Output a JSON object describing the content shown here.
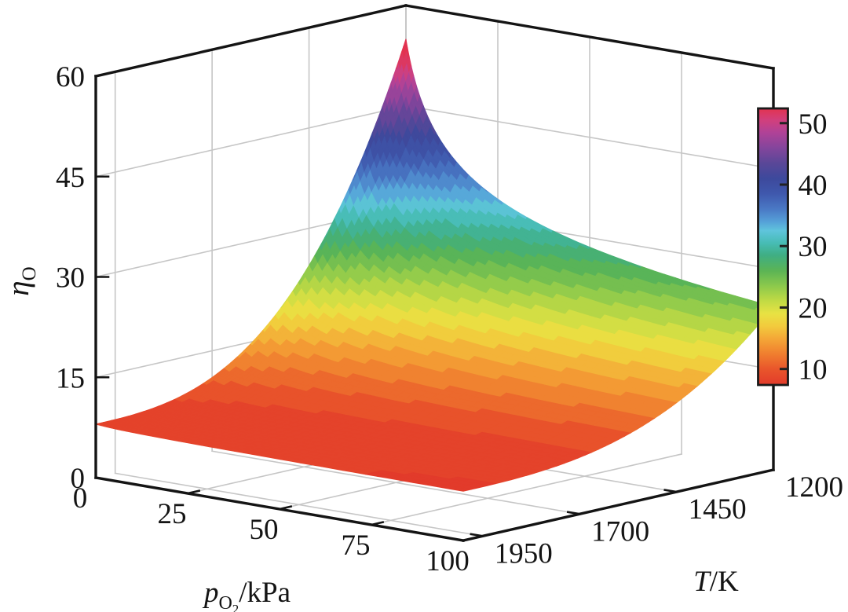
{
  "figure": {
    "background": "#ffffff",
    "axis_color": "#141414",
    "grid_color": "#c6c6c6",
    "back_edge_color": "#b9b9b9",
    "axes": {
      "z": {
        "ticks": [
          0,
          15,
          30,
          45,
          60
        ],
        "range": [
          0,
          60
        ],
        "title_eta": "η",
        "title_sub": "O"
      },
      "x": {
        "ticks": [
          0,
          25,
          50,
          75,
          100
        ],
        "range": [
          0,
          100
        ],
        "title_p": "p",
        "title_sub": "O",
        "title_sub2": "2",
        "title_rest": "/kPa"
      },
      "t": {
        "ticks": [
          1950,
          1700,
          1450,
          1200
        ],
        "range": [
          2000,
          1200
        ],
        "title_T": "T",
        "title_rest": "/K"
      }
    },
    "colorbar": {
      "ticks": [
        10,
        20,
        30,
        40,
        50
      ],
      "range": [
        7.4,
        52.4
      ],
      "position": "right"
    }
  },
  "chart_data": {
    "type": "surface",
    "title": "",
    "xlabel": "p_O2 / kPa",
    "ylabel": "T / K",
    "zlabel": "eta_O",
    "x_range": [
      0,
      100
    ],
    "y_range": [
      2000,
      1200
    ],
    "z_range": [
      0,
      60
    ],
    "color_range": [
      7.4,
      52.4
    ],
    "x_p_kPa": [
      0,
      25,
      50,
      75,
      100
    ],
    "y_T_K": [
      2000,
      1950,
      1700,
      1450,
      1200
    ],
    "z_eta": [
      [
        8.0,
        7.6,
        7.5,
        7.4,
        7.4
      ],
      [
        8.0,
        7.6,
        7.5,
        7.4,
        7.4
      ],
      [
        11.0,
        9.2,
        8.8,
        8.6,
        8.5
      ],
      [
        24.4,
        16.6,
        14.8,
        13.9,
        13.3
      ],
      [
        55.0,
        33.4,
        28.5,
        26.0,
        24.4
      ]
    ],
    "model": {
      "formula": "eta(p,T) = base + (a0 + a1*u^a_pow) * (v + v_off)^(-v_pow), u=(2000-T)/800, v=p/100",
      "base": 7.0,
      "a0": 0.368,
      "a1": 17.31,
      "a_pow": 2.8,
      "v_off": 0.05,
      "v_pow": 0.33333,
      "band_step": 1.5
    },
    "colormap_stops": [
      [
        0.0,
        "#e23b2b"
      ],
      [
        0.058,
        "#e9562b"
      ],
      [
        0.113,
        "#f07f2f"
      ],
      [
        0.169,
        "#f4a837"
      ],
      [
        0.213,
        "#f2cb3d"
      ],
      [
        0.258,
        "#e8e243"
      ],
      [
        0.302,
        "#c3db44"
      ],
      [
        0.358,
        "#8cc94c"
      ],
      [
        0.413,
        "#5bb455"
      ],
      [
        0.469,
        "#3fae83"
      ],
      [
        0.513,
        "#47bcb4"
      ],
      [
        0.558,
        "#5fc4dc"
      ],
      [
        0.591,
        "#55a0d8"
      ],
      [
        0.636,
        "#4a79c5"
      ],
      [
        0.691,
        "#3f58ad"
      ],
      [
        0.747,
        "#3d499c"
      ],
      [
        0.802,
        "#5a4798"
      ],
      [
        0.858,
        "#84459c"
      ],
      [
        0.913,
        "#b04297"
      ],
      [
        0.958,
        "#d23f7c"
      ],
      [
        1.0,
        "#e23350"
      ]
    ],
    "grid": true,
    "legend": "colorbar-right"
  }
}
